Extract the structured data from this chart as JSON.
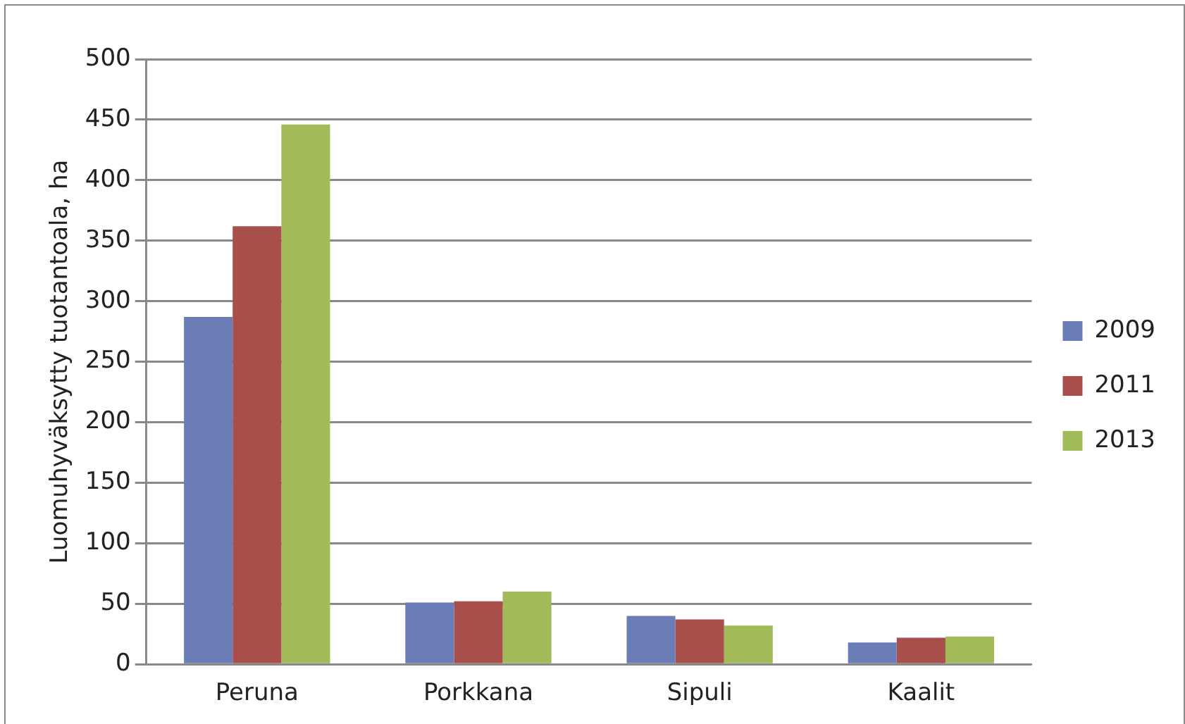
{
  "chart_data": {
    "type": "bar",
    "ylabel": "Luomuhyväksytty tuotantoala, ha",
    "categories": [
      "Peruna",
      "Porkkana",
      "Sipuli",
      "Kaalit"
    ],
    "series": [
      {
        "name": "2009",
        "color": "#6a7db7",
        "values": [
          287,
          51,
          40,
          18
        ]
      },
      {
        "name": "2011",
        "color": "#a84f4b",
        "values": [
          362,
          52,
          37,
          22
        ]
      },
      {
        "name": "2013",
        "color": "#a2bb59",
        "values": [
          446,
          60,
          32,
          23
        ]
      }
    ],
    "ylim": [
      0,
      500
    ],
    "yticks": [
      0,
      50,
      100,
      150,
      200,
      250,
      300,
      350,
      400,
      450,
      500
    ],
    "grid": "y",
    "legend": "right"
  }
}
